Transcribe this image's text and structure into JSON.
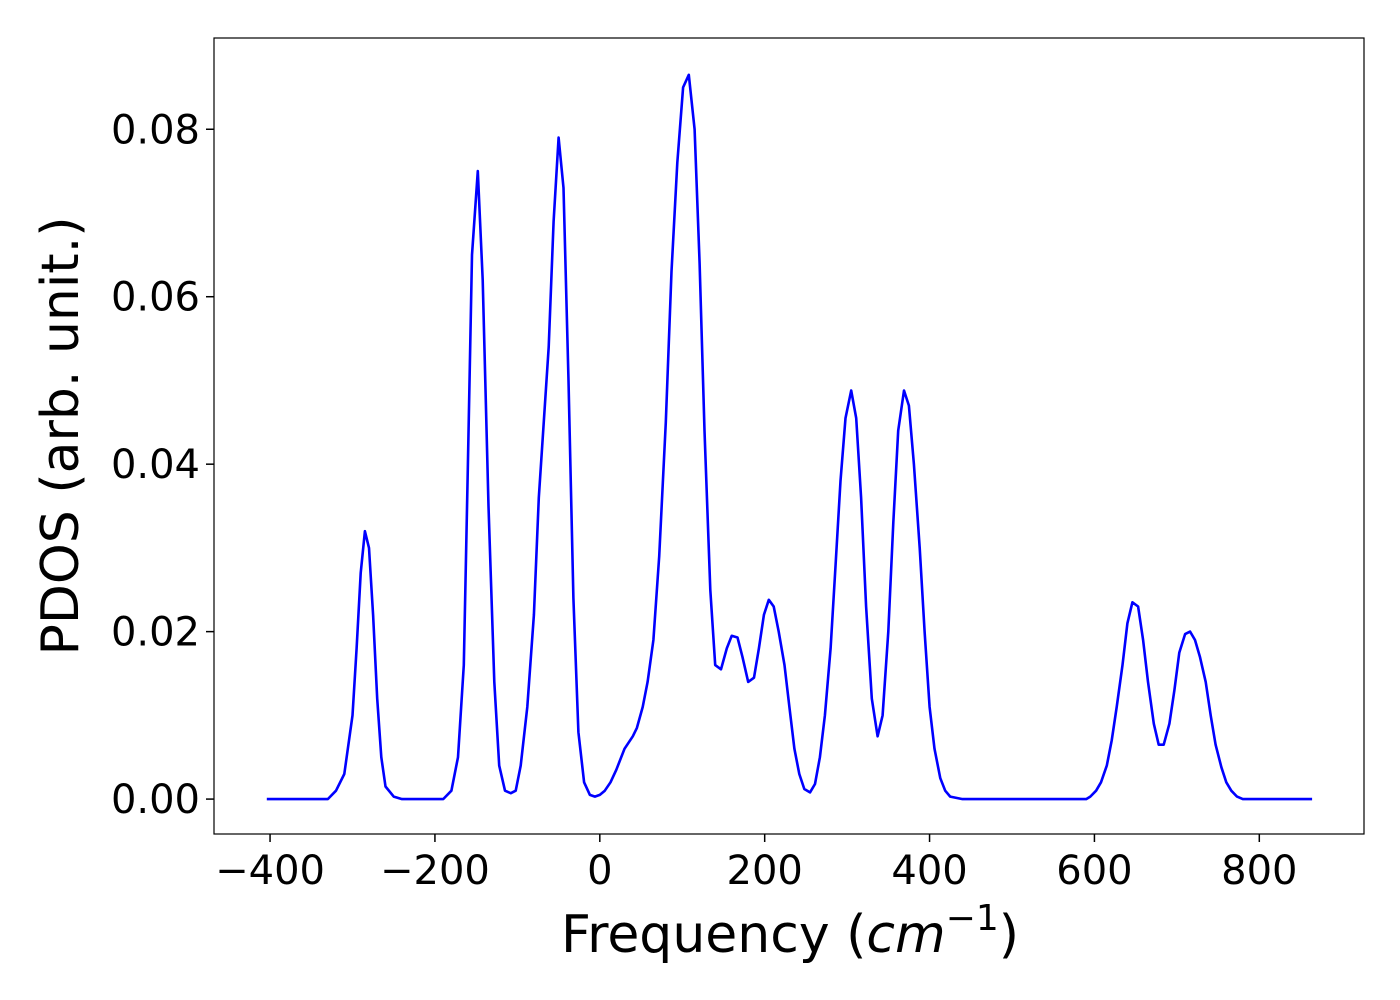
{
  "chart_data": {
    "type": "line",
    "xlabel": [
      "Frequency (",
      "cm",
      "−1",
      ")"
    ],
    "ylabel": "PDOS (arb. unit.)",
    "color": "#0000ff",
    "x": [
      -404,
      -330,
      -320,
      -310,
      -300,
      -295,
      -290,
      -285,
      -280,
      -275,
      -270,
      -265,
      -260,
      -250,
      -240,
      -190,
      -180,
      -172,
      -165,
      -160,
      -155,
      -148,
      -142,
      -135,
      -128,
      -122,
      -115,
      -108,
      -102,
      -96,
      -88,
      -80,
      -74,
      -62,
      -56,
      -50,
      -44,
      -38,
      -32,
      -26,
      -19,
      -12,
      -6,
      0,
      6,
      13,
      20,
      30,
      40,
      45,
      52,
      58,
      65,
      72,
      80,
      87,
      94,
      101,
      108,
      115,
      121,
      127,
      134,
      140,
      147,
      154,
      160,
      167,
      173,
      180,
      187,
      193,
      199,
      205,
      211,
      217,
      224,
      230,
      236,
      242,
      248,
      255,
      261,
      267,
      273,
      280,
      286,
      292,
      298,
      305,
      311,
      317,
      323,
      330,
      337,
      343,
      350,
      356,
      362,
      369,
      375,
      381,
      388,
      394,
      400,
      406,
      413,
      419,
      425,
      440,
      590,
      595,
      602,
      608,
      615,
      621,
      627,
      634,
      640,
      646,
      653,
      659,
      665,
      672,
      678,
      684,
      691,
      697,
      703,
      710,
      716,
      722,
      728,
      735,
      741,
      747,
      754,
      760,
      766,
      773,
      780,
      864
    ],
    "values": [
      0,
      0,
      0.001,
      0.003,
      0.01,
      0.018,
      0.027,
      0.032,
      0.03,
      0.022,
      0.012,
      0.005,
      0.0015,
      0.0003,
      0,
      0,
      0.001,
      0.005,
      0.016,
      0.04,
      0.065,
      0.075,
      0.062,
      0.035,
      0.014,
      0.004,
      0.001,
      0.0007,
      0.001,
      0.004,
      0.011,
      0.022,
      0.036,
      0.054,
      0.069,
      0.079,
      0.073,
      0.05,
      0.024,
      0.008,
      0.002,
      0.0005,
      0.0003,
      0.0005,
      0.001,
      0.002,
      0.0035,
      0.006,
      0.0075,
      0.0085,
      0.011,
      0.014,
      0.019,
      0.029,
      0.045,
      0.063,
      0.076,
      0.085,
      0.0865,
      0.08,
      0.064,
      0.044,
      0.025,
      0.016,
      0.0155,
      0.018,
      0.0195,
      0.0193,
      0.017,
      0.014,
      0.0145,
      0.018,
      0.022,
      0.0238,
      0.023,
      0.02,
      0.016,
      0.011,
      0.006,
      0.003,
      0.0012,
      0.0008,
      0.0018,
      0.005,
      0.01,
      0.018,
      0.028,
      0.038,
      0.0455,
      0.0488,
      0.0455,
      0.036,
      0.023,
      0.012,
      0.0075,
      0.01,
      0.02,
      0.033,
      0.044,
      0.0488,
      0.047,
      0.04,
      0.03,
      0.02,
      0.011,
      0.006,
      0.0025,
      0.001,
      0.0003,
      0,
      0,
      0.0003,
      0.001,
      0.002,
      0.004,
      0.007,
      0.011,
      0.016,
      0.021,
      0.0235,
      0.023,
      0.019,
      0.014,
      0.009,
      0.0065,
      0.0065,
      0.009,
      0.013,
      0.0175,
      0.0197,
      0.02,
      0.019,
      0.017,
      0.014,
      0.01,
      0.0065,
      0.0038,
      0.002,
      0.001,
      0.0003,
      0,
      0
    ],
    "xlim": [
      -468,
      927
    ],
    "ylim": [
      -0.00417,
      0.0909
    ],
    "xticks": [
      {
        "value": -400,
        "label": "−400"
      },
      {
        "value": -200,
        "label": "−200"
      },
      0,
      200,
      400,
      600,
      800
    ],
    "yticks": [
      {
        "value": 0,
        "label": "0.00"
      },
      0.02,
      0.04,
      0.06,
      0.08
    ]
  }
}
